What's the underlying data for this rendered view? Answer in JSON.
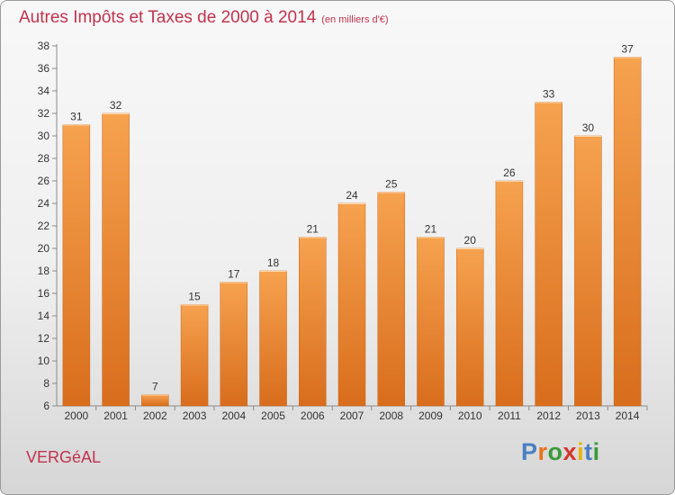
{
  "title": "Autres Impôts et Taxes de 2000 à 2014",
  "unit_label": "(en milliers d'€)",
  "commune": "VERGéAL",
  "logo": {
    "text": "Proxiti",
    "colors": [
      "#4a7fc1",
      "#e8731a",
      "#3a9a3a",
      "#d4342c",
      "#e8b40a",
      "#4a7fc1",
      "#3a9a3a"
    ]
  },
  "colors": {
    "bar_top": "#f6a24f",
    "bar_bottom": "#d86d1c",
    "title": "#c0334d"
  },
  "chart_data": {
    "type": "bar",
    "categories": [
      "2000",
      "2001",
      "2002",
      "2003",
      "2004",
      "2005",
      "2006",
      "2007",
      "2008",
      "2009",
      "2010",
      "2011",
      "2012",
      "2013",
      "2014"
    ],
    "values": [
      31,
      32,
      7,
      15,
      17,
      18,
      21,
      24,
      25,
      21,
      20,
      26,
      33,
      30,
      37
    ],
    "ylim": [
      6,
      38
    ],
    "yticks": [
      6,
      8,
      10,
      12,
      14,
      16,
      18,
      20,
      22,
      24,
      26,
      28,
      30,
      32,
      34,
      36,
      38
    ],
    "grid": false
  }
}
